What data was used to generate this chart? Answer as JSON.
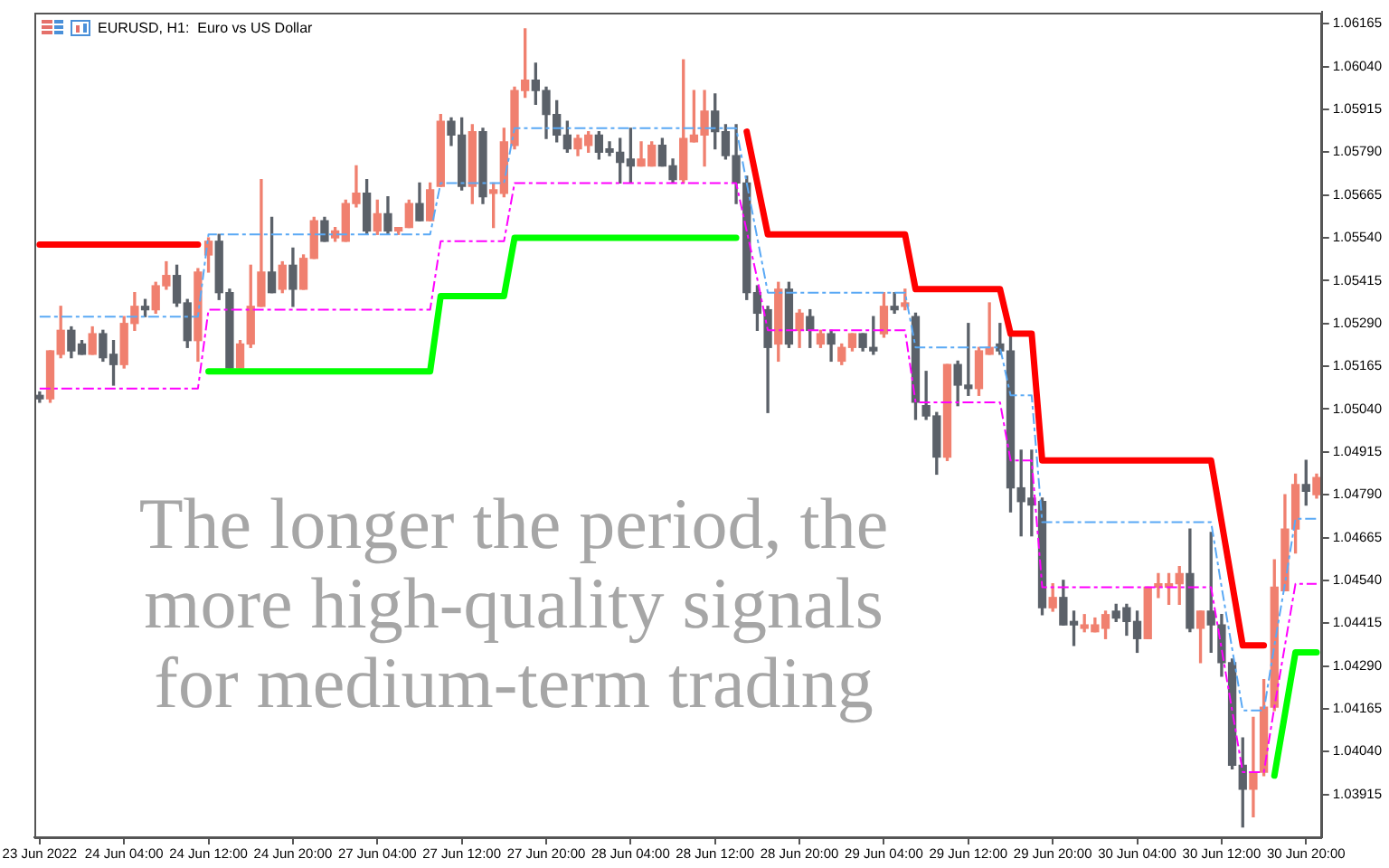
{
  "chart_data": {
    "type": "candlestick",
    "title": "EURUSD, H1:  Euro vs US Dollar",
    "annotations": [
      "The longer the period, the more high-quality signals for medium-term trading"
    ],
    "categories": [
      "23 Jun 2022",
      null,
      null,
      null,
      null,
      null,
      null,
      null,
      "24 Jun 04:00",
      null,
      null,
      null,
      null,
      null,
      null,
      null,
      "24 Jun 12:00",
      null,
      null,
      null,
      null,
      null,
      null,
      null,
      "24 Jun 20:00",
      null,
      null,
      null,
      null,
      null,
      null,
      null,
      "27 Jun 04:00",
      null,
      null,
      null,
      null,
      null,
      null,
      null,
      "27 Jun 12:00",
      null,
      null,
      null,
      null,
      null,
      null,
      null,
      "27 Jun 20:00",
      null,
      null,
      null,
      null,
      null,
      null,
      null,
      "28 Jun 04:00",
      null,
      null,
      null,
      null,
      null,
      null,
      null,
      "28 Jun 12:00",
      null,
      null,
      null,
      null,
      null,
      null,
      null,
      "28 Jun 20:00",
      null,
      null,
      null,
      null,
      null,
      null,
      null,
      "29 Jun 04:00",
      null,
      null,
      null,
      null,
      null,
      null,
      null,
      "29 Jun 12:00",
      null,
      null,
      null,
      null,
      null,
      null,
      null,
      "29 Jun 20:00",
      null,
      null,
      null,
      null,
      null,
      null,
      null,
      "30 Jun 04:00",
      null,
      null,
      null,
      null,
      null,
      null,
      null,
      "30 Jun 12:00",
      null,
      null,
      null,
      null,
      null,
      null,
      null,
      "30 Jun 20:00",
      null
    ],
    "ohlc": [
      [
        1.0508,
        1.0509,
        1.0506,
        1.0507
      ],
      [
        1.0507,
        1.0521,
        1.0506,
        1.0521
      ],
      [
        1.052,
        1.0534,
        1.0519,
        1.0527
      ],
      [
        1.0527,
        1.0528,
        1.0519,
        1.0521
      ],
      [
        1.0523,
        1.0524,
        1.052,
        1.052
      ],
      [
        1.052,
        1.0528,
        1.052,
        1.0526
      ],
      [
        1.0526,
        1.0527,
        1.0518,
        1.0519
      ],
      [
        1.052,
        1.0524,
        1.0511,
        1.0517
      ],
      [
        1.0517,
        1.0531,
        1.0516,
        1.0529
      ],
      [
        1.0529,
        1.0538,
        1.0527,
        1.0534
      ],
      [
        1.0534,
        1.0536,
        1.0531,
        1.0533
      ],
      [
        1.0533,
        1.0541,
        1.0532,
        1.054
      ],
      [
        1.054,
        1.0547,
        1.0539,
        1.0543
      ],
      [
        1.0543,
        1.0546,
        1.0534,
        1.0535
      ],
      [
        1.0535,
        1.0536,
        1.0522,
        1.0524
      ],
      [
        1.0524,
        1.0545,
        1.0518,
        1.0544
      ],
      [
        1.0549,
        1.0554,
        1.0544,
        1.0553
      ],
      [
        1.0553,
        1.0555,
        1.0536,
        1.0538
      ],
      [
        1.0538,
        1.0539,
        1.0516,
        1.0516
      ],
      [
        1.0516,
        1.0524,
        1.0516,
        1.0523
      ],
      [
        1.0523,
        1.0546,
        1.0522,
        1.0534
      ],
      [
        1.0534,
        1.0571,
        1.0534,
        1.0544
      ],
      [
        1.0544,
        1.056,
        1.0538,
        1.0538
      ],
      [
        1.0539,
        1.0547,
        1.0538,
        1.0546
      ],
      [
        1.0546,
        1.0551,
        1.0534,
        1.0539
      ],
      [
        1.0539,
        1.0549,
        1.0539,
        1.0548
      ],
      [
        1.0548,
        1.056,
        1.0548,
        1.0559
      ],
      [
        1.0559,
        1.056,
        1.0553,
        1.0553
      ],
      [
        1.0554,
        1.0557,
        1.0553,
        1.0556
      ],
      [
        1.0553,
        1.0565,
        1.0553,
        1.0564
      ],
      [
        1.0564,
        1.0575,
        1.0563,
        1.0567
      ],
      [
        1.0567,
        1.0571,
        1.0555,
        1.0556
      ],
      [
        1.0556,
        1.0565,
        1.0555,
        1.0561
      ],
      [
        1.0561,
        1.0566,
        1.0555,
        1.0556
      ],
      [
        1.0556,
        1.0557,
        1.0555,
        1.0557
      ],
      [
        1.0557,
        1.0565,
        1.0557,
        1.0564
      ],
      [
        1.0564,
        1.057,
        1.0559,
        1.0559
      ],
      [
        1.0559,
        1.057,
        1.0559,
        1.0568
      ],
      [
        1.0569,
        1.059,
        1.0569,
        1.0588
      ],
      [
        1.0588,
        1.0589,
        1.0581,
        1.0584
      ],
      [
        1.0584,
        1.0589,
        1.0568,
        1.0569
      ],
      [
        1.0569,
        1.0587,
        1.0564,
        1.0585
      ],
      [
        1.0585,
        1.0586,
        1.0564,
        1.0566
      ],
      [
        1.0567,
        1.057,
        1.0557,
        1.0568
      ],
      [
        1.0567,
        1.0586,
        1.0566,
        1.0582
      ],
      [
        1.0581,
        1.0598,
        1.058,
        1.0597
      ],
      [
        1.0597,
        1.0615,
        1.0595,
        1.06
      ],
      [
        1.06,
        1.0605,
        1.0593,
        1.0597
      ],
      [
        1.0597,
        1.0598,
        1.0583,
        1.059
      ],
      [
        1.059,
        1.0594,
        1.0582,
        1.0584
      ],
      [
        1.0584,
        1.0588,
        1.0579,
        1.058
      ],
      [
        1.058,
        1.0584,
        1.0578,
        1.0583
      ],
      [
        1.0581,
        1.0585,
        1.0579,
        1.0584
      ],
      [
        1.0584,
        1.0585,
        1.0577,
        1.0579
      ],
      [
        1.058,
        1.0582,
        1.0578,
        1.0579
      ],
      [
        1.0579,
        1.0583,
        1.057,
        1.0576
      ],
      [
        1.0577,
        1.0586,
        1.057,
        1.0575
      ],
      [
        1.0575,
        1.0582,
        1.0575,
        1.0577
      ],
      [
        1.0575,
        1.0582,
        1.0575,
        1.0581
      ],
      [
        1.0581,
        1.0583,
        1.0575,
        1.0575
      ],
      [
        1.0575,
        1.0577,
        1.057,
        1.0571
      ],
      [
        1.0571,
        1.0606,
        1.057,
        1.0583
      ],
      [
        1.0582,
        1.0597,
        1.0582,
        1.0584
      ],
      [
        1.0584,
        1.0597,
        1.0575,
        1.0591
      ],
      [
        1.0591,
        1.0596,
        1.058,
        1.0585
      ],
      [
        1.0585,
        1.0587,
        1.0577,
        1.0578
      ],
      [
        1.0578,
        1.0587,
        1.0564,
        1.057
      ],
      [
        1.057,
        1.0572,
        1.0536,
        1.0538
      ],
      [
        1.0538,
        1.054,
        1.0527,
        1.0532
      ],
      [
        1.0533,
        1.0534,
        1.0503,
        1.0522
      ],
      [
        1.0523,
        1.0541,
        1.0518,
        1.0539
      ],
      [
        1.0539,
        1.0541,
        1.0522,
        1.0523
      ],
      [
        1.0527,
        1.0533,
        1.0522,
        1.0532
      ],
      [
        1.0531,
        1.0533,
        1.0522,
        1.0527
      ],
      [
        1.0523,
        1.0527,
        1.0522,
        1.0526
      ],
      [
        1.0526,
        1.0527,
        1.0518,
        1.0523
      ],
      [
        1.0518,
        1.0523,
        1.0517,
        1.0522
      ],
      [
        1.0522,
        1.0526,
        1.0521,
        1.0526
      ],
      [
        1.0526,
        1.0526,
        1.0521,
        1.0522
      ],
      [
        1.0522,
        1.0531,
        1.052,
        1.0521
      ],
      [
        1.0526,
        1.0538,
        1.0525,
        1.0534
      ],
      [
        1.0534,
        1.0538,
        1.0532,
        1.0533
      ],
      [
        1.0534,
        1.0539,
        1.0533,
        1.0535
      ],
      [
        1.0531,
        1.0532,
        1.0501,
        1.0506
      ],
      [
        1.0505,
        1.0515,
        1.0501,
        1.0502
      ],
      [
        1.0502,
        1.0503,
        1.0485,
        1.049
      ],
      [
        1.049,
        1.0517,
        1.0489,
        1.0517
      ],
      [
        1.0517,
        1.0518,
        1.0505,
        1.0511
      ],
      [
        1.0511,
        1.0529,
        1.0508,
        1.051
      ],
      [
        1.051,
        1.0522,
        1.0508,
        1.0521
      ],
      [
        1.052,
        1.0535,
        1.052,
        1.0522
      ],
      [
        1.0523,
        1.0529,
        1.052,
        1.0521
      ],
      [
        1.0521,
        1.0526,
        1.0474,
        1.0481
      ],
      [
        1.0481,
        1.0492,
        1.0467,
        1.0477
      ],
      [
        1.0478,
        1.0492,
        1.0467,
        1.0476
      ],
      [
        1.0477,
        1.0478,
        1.0444,
        1.0446
      ],
      [
        1.0446,
        1.0453,
        1.0445,
        1.0449
      ],
      [
        1.0449,
        1.0454,
        1.0441,
        1.0441
      ],
      [
        1.0442,
        1.0445,
        1.0435,
        1.0441
      ],
      [
        1.044,
        1.0444,
        1.0439,
        1.0441
      ],
      [
        1.0439,
        1.0443,
        1.0439,
        1.0441
      ],
      [
        1.044,
        1.0445,
        1.0437,
        1.0444
      ],
      [
        1.0445,
        1.0447,
        1.0442,
        1.0443
      ],
      [
        1.0446,
        1.0447,
        1.0438,
        1.0442
      ],
      [
        1.0442,
        1.0445,
        1.0433,
        1.0437
      ],
      [
        1.0437,
        1.0452,
        1.0437,
        1.0452
      ],
      [
        1.0452,
        1.0456,
        1.0449,
        1.0453
      ],
      [
        1.0452,
        1.0456,
        1.0447,
        1.0453
      ],
      [
        1.0453,
        1.0458,
        1.0447,
        1.0456
      ],
      [
        1.0456,
        1.0469,
        1.0439,
        1.044
      ],
      [
        1.044,
        1.0445,
        1.043,
        1.0445
      ],
      [
        1.0445,
        1.0468,
        1.0433,
        1.0441
      ],
      [
        1.0441,
        1.0444,
        1.0426,
        1.043
      ],
      [
        1.043,
        1.0431,
        1.0399,
        1.04
      ],
      [
        1.04,
        1.0408,
        1.0382,
        1.0393
      ],
      [
        1.0393,
        1.0414,
        1.0385,
        1.0398
      ],
      [
        1.0398,
        1.0425,
        1.0397,
        1.0417
      ],
      [
        1.0417,
        1.046,
        1.0416,
        1.0452
      ],
      [
        1.0451,
        1.0479,
        1.0451,
        1.0469
      ],
      [
        1.0469,
        1.0485,
        1.0462,
        1.0482
      ],
      [
        1.0482,
        1.0489,
        1.0476,
        1.048
      ],
      [
        1.0479,
        1.0485,
        1.0478,
        1.0484
      ]
    ],
    "colors": [
      "#5b6169",
      "#f0806f",
      "#f0806f",
      "#5b6169",
      "#5b6169",
      "#f0806f",
      "#5b6169",
      "#5b6169",
      "#f0806f",
      "#f0806f",
      "#5b6169",
      "#f0806f",
      "#f0806f",
      "#5b6169",
      "#5b6169",
      "#f0806f",
      "#f0806f",
      "#5b6169",
      "#5b6169",
      "#f0806f",
      "#f0806f",
      "#f0806f",
      "#5b6169",
      "#f0806f",
      "#5b6169",
      "#f0806f",
      "#f0806f",
      "#5b6169",
      "#f0806f",
      "#f0806f",
      "#f0806f",
      "#5b6169",
      "#f0806f",
      "#5b6169",
      "#f0806f",
      "#f0806f",
      "#5b6169",
      "#f0806f",
      "#f0806f",
      "#5b6169",
      "#5b6169",
      "#f0806f",
      "#5b6169",
      "#f0806f",
      "#f0806f",
      "#f0806f",
      "#f0806f",
      "#5b6169",
      "#5b6169",
      "#5b6169",
      "#5b6169",
      "#f0806f",
      "#f0806f",
      "#5b6169",
      "#5b6169",
      "#5b6169",
      "#5b6169",
      "#f0806f",
      "#f0806f",
      "#5b6169",
      "#5b6169",
      "#f0806f",
      "#f0806f",
      "#f0806f",
      "#5b6169",
      "#5b6169",
      "#5b6169",
      "#5b6169",
      "#5b6169",
      "#5b6169",
      "#f0806f",
      "#5b6169",
      "#f0806f",
      "#5b6169",
      "#f0806f",
      "#5b6169",
      "#f0806f",
      "#f0806f",
      "#5b6169",
      "#5b6169",
      "#f0806f",
      "#5b6169",
      "#f0806f",
      "#5b6169",
      "#5b6169",
      "#5b6169",
      "#f0806f",
      "#5b6169",
      "#5b6169",
      "#f0806f",
      "#f0806f",
      "#5b6169",
      "#5b6169",
      "#5b6169",
      "#5b6169",
      "#5b6169",
      "#f0806f",
      "#5b6169",
      "#5b6169",
      "#f0806f",
      "#f0806f",
      "#f0806f",
      "#5b6169",
      "#5b6169",
      "#5b6169",
      "#f0806f",
      "#f0806f",
      "#f0806f",
      "#f0806f",
      "#5b6169",
      "#f0806f",
      "#5b6169",
      "#5b6169",
      "#5b6169",
      "#5b6169",
      "#f0806f",
      "#f0806f",
      "#f0806f",
      "#f0806f",
      "#f0806f",
      "#5b6169",
      "#f0806f"
    ],
    "series": [
      {
        "type": "line",
        "color": "#ff0000",
        "line_style": "solid",
        "values": [
          1.0552,
          1.0552,
          1.0552,
          1.0552,
          1.0552,
          1.0552,
          1.0552,
          1.0552,
          1.0552,
          1.0552,
          1.0552,
          1.0552,
          1.0552,
          1.0552,
          1.0552,
          1.0552,
          null,
          null,
          null,
          null,
          null,
          null,
          null,
          null,
          null,
          null,
          null,
          null,
          null,
          null,
          null,
          null,
          null,
          null,
          null,
          null,
          null,
          null,
          null,
          null,
          null,
          null,
          null,
          null,
          null,
          null,
          null,
          null,
          null,
          null,
          null,
          null,
          null,
          null,
          null,
          null,
          null,
          null,
          null,
          null,
          null,
          null,
          null,
          null,
          null,
          null,
          null,
          1.0585,
          1.057,
          1.0555,
          1.0555,
          1.0555,
          1.0555,
          1.0555,
          1.0555,
          1.0555,
          1.0555,
          1.0555,
          1.0555,
          1.0555,
          1.0555,
          1.0555,
          1.0555,
          1.0539,
          1.0539,
          1.0539,
          1.0539,
          1.0539,
          1.0539,
          1.0539,
          1.0539,
          1.0539,
          1.0526,
          1.0526,
          1.0526,
          1.0489,
          1.0489,
          1.0489,
          1.0489,
          1.0489,
          1.0489,
          1.0489,
          1.0489,
          1.0489,
          1.0489,
          1.0489,
          1.0489,
          1.0489,
          1.0489,
          1.0489,
          1.0489,
          1.0489,
          1.0471,
          1.0453,
          1.0435,
          1.0435,
          1.0435,
          null,
          null,
          null,
          null,
          null
        ]
      },
      {
        "type": "line",
        "color": "#00ff00",
        "line_style": "solid",
        "values": [
          null,
          null,
          null,
          null,
          null,
          null,
          null,
          null,
          null,
          null,
          null,
          null,
          null,
          null,
          null,
          null,
          1.0515,
          1.0515,
          1.0515,
          1.0515,
          1.0515,
          1.0515,
          1.0515,
          1.0515,
          1.0515,
          1.0515,
          1.0515,
          1.0515,
          1.0515,
          1.0515,
          1.0515,
          1.0515,
          1.0515,
          1.0515,
          1.0515,
          1.0515,
          1.0515,
          1.0515,
          1.0537,
          1.0537,
          1.0537,
          1.0537,
          1.0537,
          1.0537,
          1.0537,
          1.0554,
          1.0554,
          1.0554,
          1.0554,
          1.0554,
          1.0554,
          1.0554,
          1.0554,
          1.0554,
          1.0554,
          1.0554,
          1.0554,
          1.0554,
          1.0554,
          1.0554,
          1.0554,
          1.0554,
          1.0554,
          1.0554,
          1.0554,
          1.0554,
          1.0554,
          null,
          null,
          null,
          null,
          null,
          null,
          null,
          null,
          null,
          null,
          null,
          null,
          null,
          null,
          null,
          null,
          null,
          null,
          null,
          null,
          null,
          null,
          null,
          null,
          null,
          null,
          null,
          null,
          null,
          null,
          null,
          null,
          null,
          null,
          null,
          null,
          null,
          null,
          null,
          null,
          null,
          null,
          null,
          null,
          null,
          null,
          null,
          null,
          null,
          null,
          1.0397,
          1.0415,
          1.0433,
          1.0433,
          1.0433
        ]
      },
      {
        "type": "line",
        "color": "#5aa9f5",
        "line_style": "dashed",
        "values": [
          1.0531,
          1.0531,
          1.0531,
          1.0531,
          1.0531,
          1.0531,
          1.0531,
          1.0531,
          1.0531,
          1.0531,
          1.0531,
          1.0531,
          1.0531,
          1.0531,
          1.0531,
          1.0531,
          1.0555,
          1.0555,
          1.0555,
          1.0555,
          1.0555,
          1.0555,
          1.0555,
          1.0555,
          1.0555,
          1.0555,
          1.0555,
          1.0555,
          1.0555,
          1.0555,
          1.0555,
          1.0555,
          1.0555,
          1.0555,
          1.0555,
          1.0555,
          1.0555,
          1.0555,
          1.057,
          1.057,
          1.057,
          1.057,
          1.057,
          1.057,
          1.057,
          1.0586,
          1.0586,
          1.0586,
          1.0586,
          1.0586,
          1.0586,
          1.0586,
          1.0586,
          1.0586,
          1.0586,
          1.0586,
          1.0586,
          1.0586,
          1.0586,
          1.0586,
          1.0586,
          1.0586,
          1.0586,
          1.0586,
          1.0586,
          1.0586,
          1.0586,
          1.057,
          1.0554,
          1.0538,
          1.0538,
          1.0538,
          1.0538,
          1.0538,
          1.0538,
          1.0538,
          1.0538,
          1.0538,
          1.0538,
          1.0538,
          1.0538,
          1.0538,
          1.0538,
          1.0522,
          1.0522,
          1.0522,
          1.0522,
          1.0522,
          1.0522,
          1.0522,
          1.0522,
          1.0522,
          1.0508,
          1.0508,
          1.0508,
          1.0471,
          1.0471,
          1.0471,
          1.0471,
          1.0471,
          1.0471,
          1.0471,
          1.0471,
          1.0471,
          1.0471,
          1.0471,
          1.0471,
          1.0471,
          1.0471,
          1.0471,
          1.0471,
          1.0471,
          1.0452,
          1.0434,
          1.0416,
          1.0416,
          1.0416,
          1.0435,
          1.0453,
          1.0472,
          1.0472,
          1.0472
        ]
      },
      {
        "type": "line",
        "color": "#ff00ff",
        "line_style": "dashed",
        "values": [
          1.051,
          1.051,
          1.051,
          1.051,
          1.051,
          1.051,
          1.051,
          1.051,
          1.051,
          1.051,
          1.051,
          1.051,
          1.051,
          1.051,
          1.051,
          1.051,
          1.0533,
          1.0533,
          1.0533,
          1.0533,
          1.0533,
          1.0533,
          1.0533,
          1.0533,
          1.0533,
          1.0533,
          1.0533,
          1.0533,
          1.0533,
          1.0533,
          1.0533,
          1.0533,
          1.0533,
          1.0533,
          1.0533,
          1.0533,
          1.0533,
          1.0533,
          1.0553,
          1.0553,
          1.0553,
          1.0553,
          1.0553,
          1.0553,
          1.0553,
          1.057,
          1.057,
          1.057,
          1.057,
          1.057,
          1.057,
          1.057,
          1.057,
          1.057,
          1.057,
          1.057,
          1.057,
          1.057,
          1.057,
          1.057,
          1.057,
          1.057,
          1.057,
          1.057,
          1.057,
          1.057,
          1.057,
          1.0556,
          1.0542,
          1.0527,
          1.0527,
          1.0527,
          1.0527,
          1.0527,
          1.0527,
          1.0527,
          1.0527,
          1.0527,
          1.0527,
          1.0527,
          1.0527,
          1.0527,
          1.0527,
          1.0506,
          1.0506,
          1.0506,
          1.0506,
          1.0506,
          1.0506,
          1.0506,
          1.0506,
          1.0506,
          1.0489,
          1.0489,
          1.0489,
          1.0452,
          1.0452,
          1.0452,
          1.0452,
          1.0452,
          1.0452,
          1.0452,
          1.0452,
          1.0452,
          1.0452,
          1.0452,
          1.0452,
          1.0452,
          1.0452,
          1.0452,
          1.0452,
          1.0452,
          1.0434,
          1.0416,
          1.0398,
          1.0398,
          1.0398,
          1.0417,
          1.0435,
          1.0453,
          1.0453,
          1.0453
        ]
      }
    ],
    "ylim": [
      1.0379,
      1.062
    ],
    "yticks": [
      1.03915,
      {
        "value": 1.0404,
        "label": "1.04040"
      },
      1.04165,
      {
        "value": 1.0429,
        "label": "1.04290"
      },
      1.04415,
      {
        "value": 1.0454,
        "label": "1.04540"
      },
      1.04665,
      {
        "value": 1.0479,
        "label": "1.04790"
      },
      1.04915,
      {
        "value": 1.0504,
        "label": "1.05040"
      },
      1.05165,
      {
        "value": 1.0529,
        "label": "1.05290"
      },
      1.05415,
      {
        "value": 1.0554,
        "label": "1.05540"
      },
      1.05665,
      {
        "value": 1.0579,
        "label": "1.05790"
      },
      1.05915,
      {
        "value": 1.0604,
        "label": "1.06040"
      },
      1.06165
    ]
  }
}
